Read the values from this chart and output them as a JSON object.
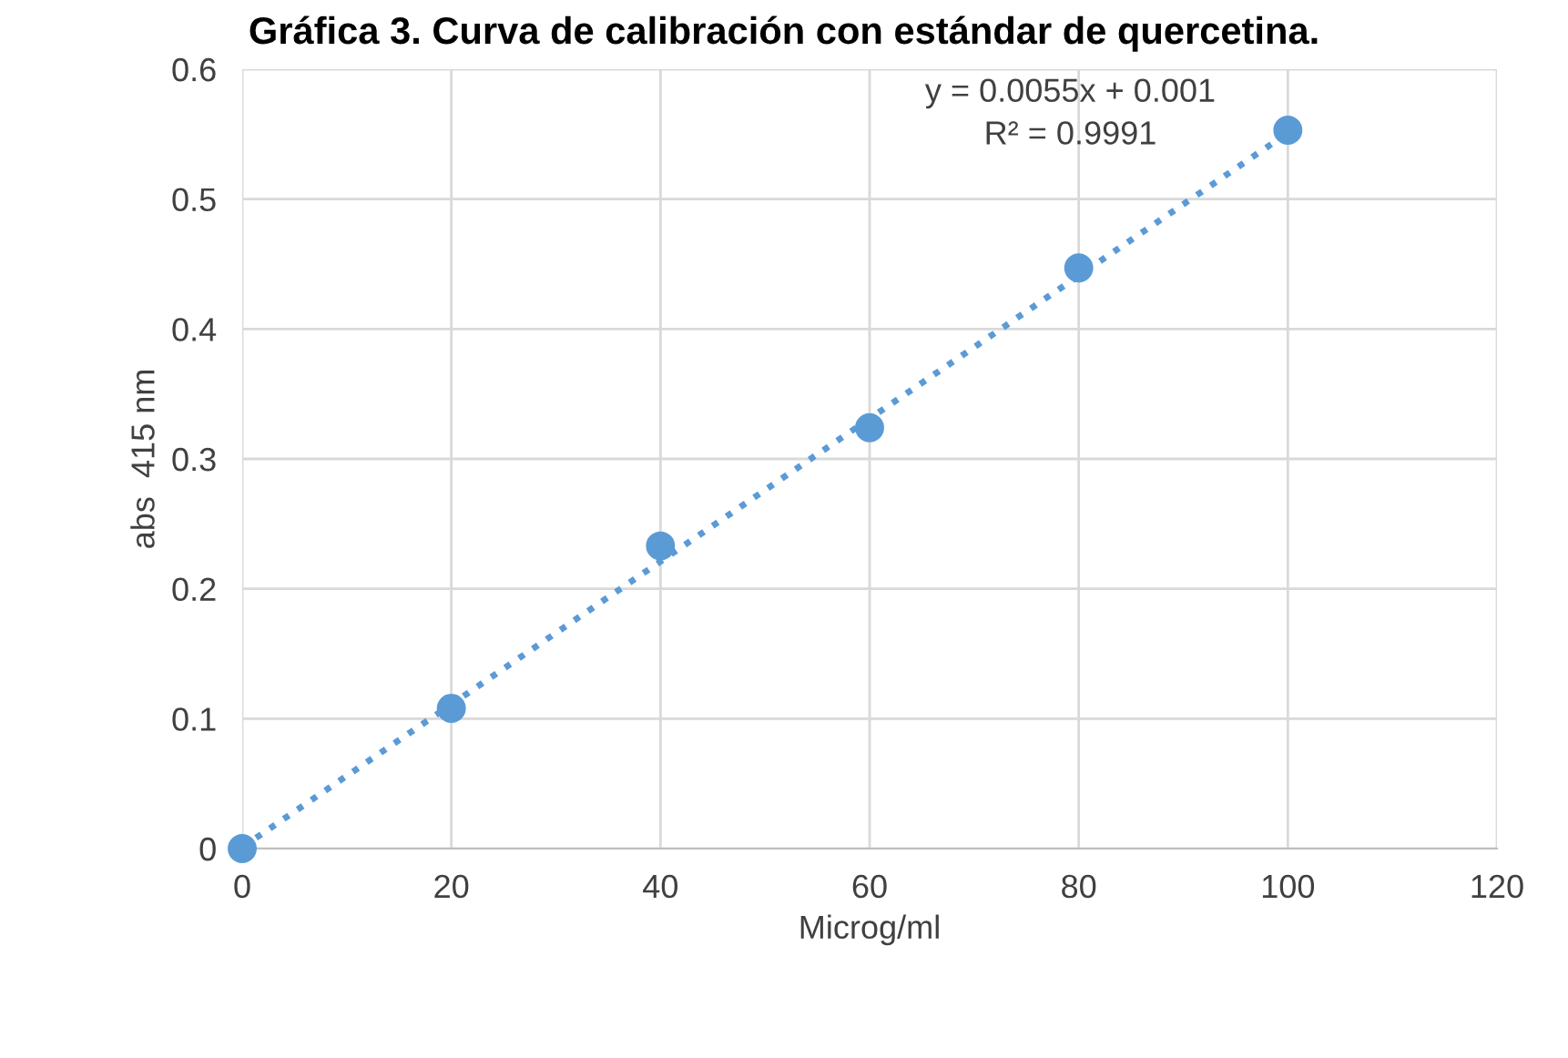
{
  "chart_data": {
    "type": "scatter",
    "title": "Gráfica 3. Curva de calibración con estándar de quercetina.",
    "xlabel": "Microg/ml",
    "ylabel": "abs  415 nm",
    "series": [
      {
        "color": "#5b9bd5",
        "x": [
          0,
          20,
          40,
          60,
          80,
          100
        ],
        "values": [
          0,
          0.108,
          0.233,
          0.324,
          0.447,
          0.553
        ],
        "marker": "circle"
      },
      {
        "type": "line",
        "color": "#5b9bd5",
        "x": [
          0,
          100
        ],
        "values": [
          0.001,
          0.551
        ],
        "line_style": "dotted",
        "marker": "none"
      }
    ],
    "annotations": [
      "y = 0.0055x + 0.001\nR² = 0.9991"
    ],
    "xlim": [
      0,
      120
    ],
    "xticks": [
      0,
      20,
      40,
      60,
      80,
      100,
      120
    ],
    "ylim": [
      0,
      0.6
    ],
    "yticks": [
      0,
      0.1,
      0.2,
      0.3,
      0.4,
      0.5,
      0.6
    ],
    "grid": true
  }
}
